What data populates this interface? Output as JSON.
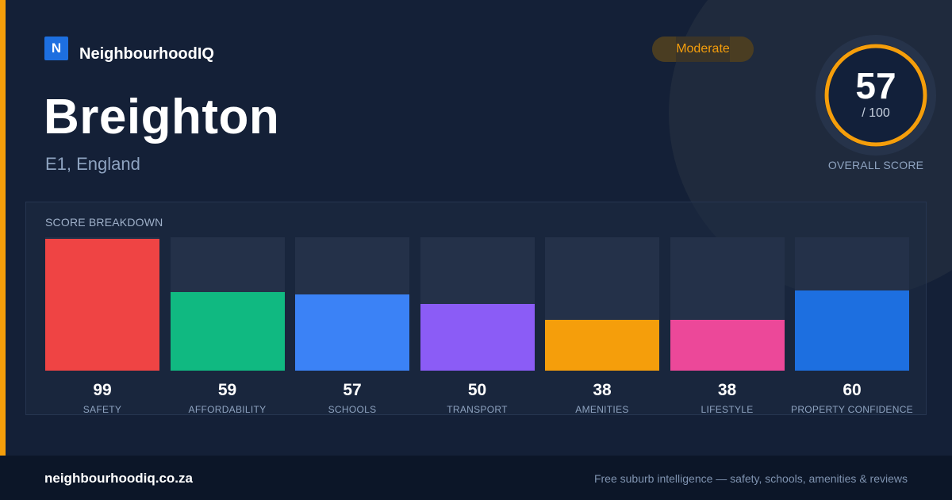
{
  "brand": {
    "logo_letter": "N",
    "name": "NeighbourhoodIQ"
  },
  "suburb": {
    "name": "Breighton",
    "location": "E1, England"
  },
  "rating": {
    "label": "Moderate",
    "color": "#f59e0b"
  },
  "overall": {
    "score": "57",
    "max_label": "/ 100",
    "max": 100,
    "caption": "OVERALL SCORE",
    "ring_color": "#f59e0b"
  },
  "breakdown": {
    "title": "SCORE BREAKDOWN",
    "max": 100,
    "items": [
      {
        "label": "SAFETY",
        "value": 99,
        "color": "#ef4444"
      },
      {
        "label": "AFFORDABILITY",
        "value": 59,
        "color": "#10b981"
      },
      {
        "label": "SCHOOLS",
        "value": 57,
        "color": "#3b82f6"
      },
      {
        "label": "TRANSPORT",
        "value": 50,
        "color": "#8b5cf6"
      },
      {
        "label": "AMENITIES",
        "value": 38,
        "color": "#f59e0b"
      },
      {
        "label": "LIFESTYLE",
        "value": 38,
        "color": "#ec4899"
      },
      {
        "label": "PROPERTY CONFIDENCE",
        "value": 60,
        "color": "#1d6fe0"
      }
    ]
  },
  "footer": {
    "domain": "neighbourhoodiq.co.za",
    "tagline": "Free suburb intelligence — safety, schools, amenities & reviews"
  }
}
